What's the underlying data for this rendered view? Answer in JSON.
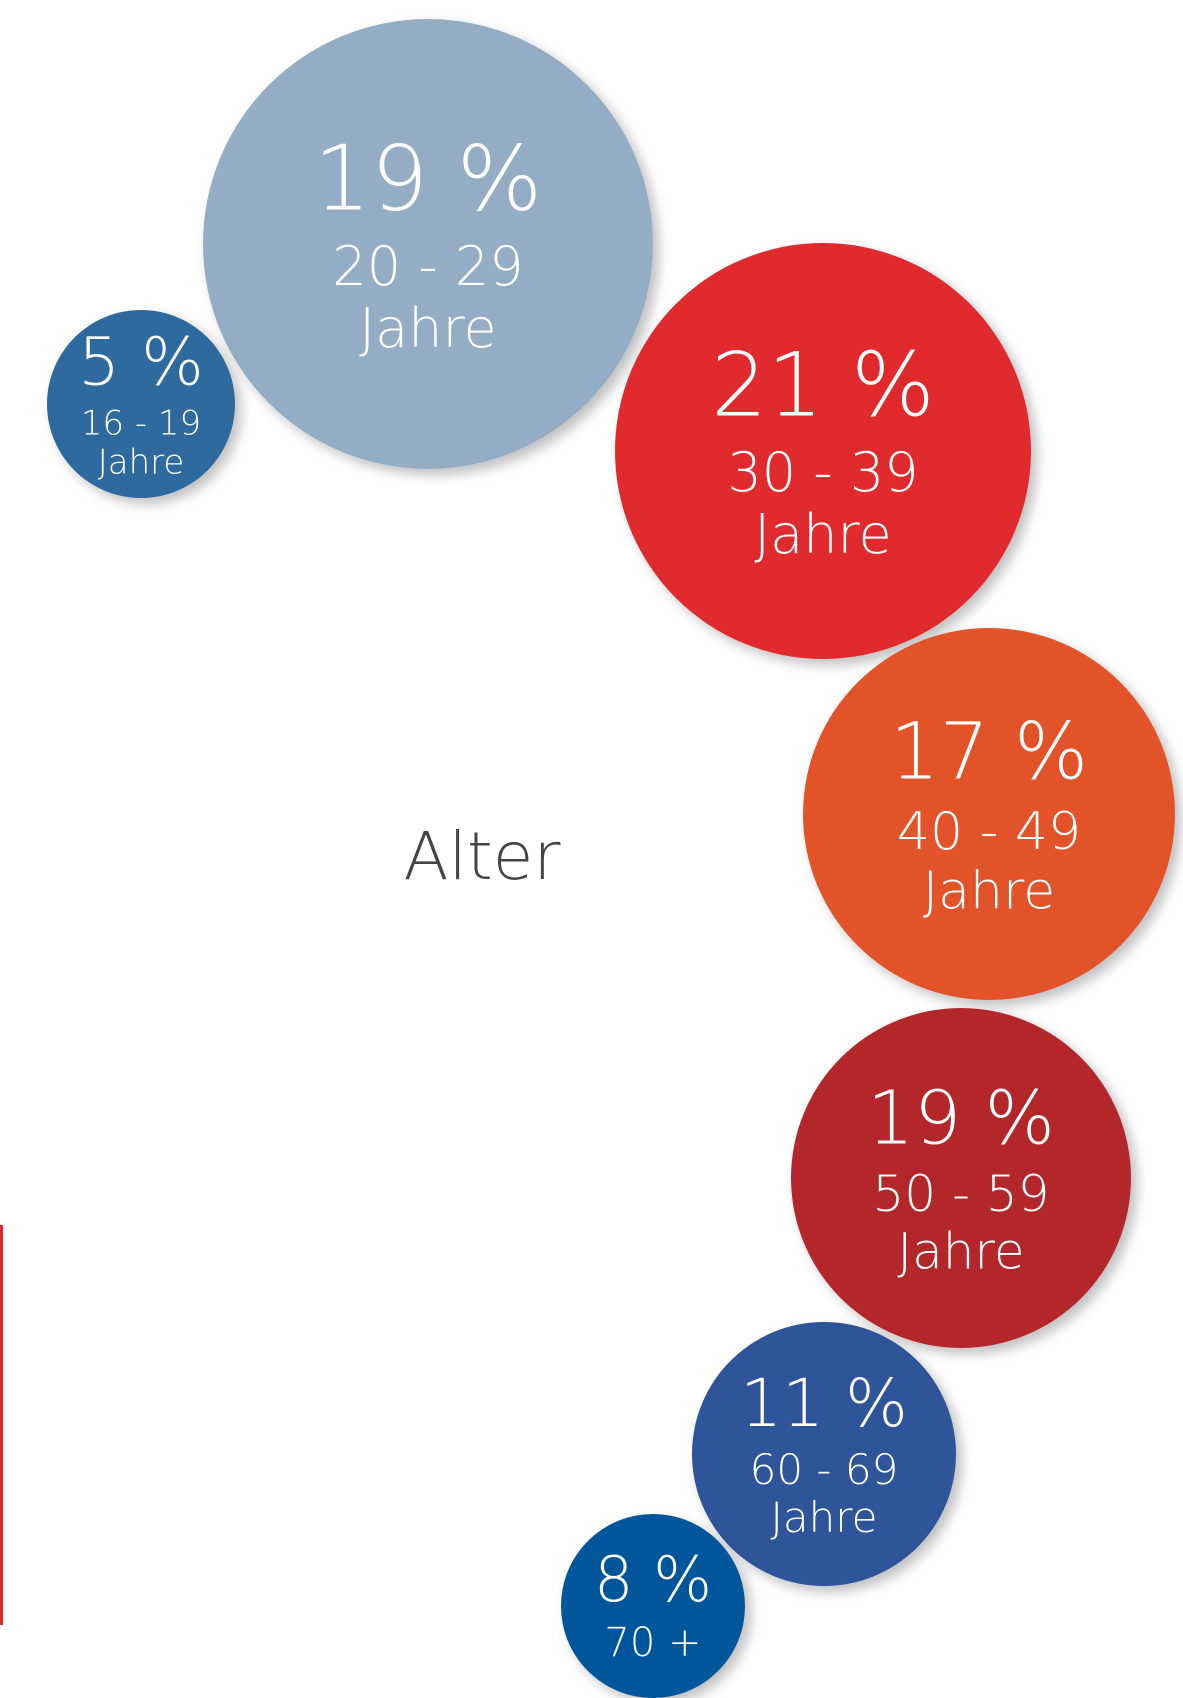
{
  "chart_data": {
    "type": "bubble",
    "title": "Alter",
    "categories": [
      [
        "16 - 19",
        "Jahre"
      ],
      [
        "20 - 29",
        "Jahre"
      ],
      [
        "30 - 39",
        "Jahre"
      ],
      [
        "40 - 49",
        "Jahre"
      ],
      [
        "50 - 59",
        "Jahre"
      ],
      [
        "60 - 69",
        "Jahre"
      ],
      [
        "70 +"
      ]
    ],
    "values": [
      5,
      19,
      21,
      17,
      19,
      11,
      8
    ],
    "value_labels": [
      "5 %",
      "19 %",
      "21 %",
      "17 %",
      "19 %",
      "11 %",
      "8 %"
    ],
    "colors": [
      "#2f6b9e",
      "#94adc4",
      "#e0292d",
      "#e2532c",
      "#b3282c",
      "#2d5499",
      "#00569b"
    ]
  }
}
